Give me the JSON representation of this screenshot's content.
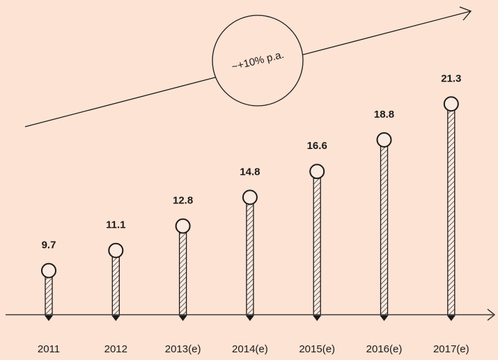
{
  "chart_data": {
    "type": "bar",
    "categories": [
      "2011",
      "2012",
      "2013(e)",
      "2014(e)",
      "2015(e)",
      "2016(e)",
      "2017(e)"
    ],
    "values": [
      9.7,
      11.1,
      12.8,
      14.8,
      16.6,
      18.8,
      21.3
    ],
    "value_labels": [
      "9.7",
      "11.1",
      "12.8",
      "14.8",
      "16.6",
      "18.8",
      "21.3"
    ],
    "annotation": "~+10% p.a.",
    "title": "",
    "xlabel": "",
    "ylabel": "",
    "grid": false,
    "colors": {
      "background": "#fde3d4",
      "ink": "#1a1a1a",
      "marker_fill": "#fbeae0"
    }
  }
}
